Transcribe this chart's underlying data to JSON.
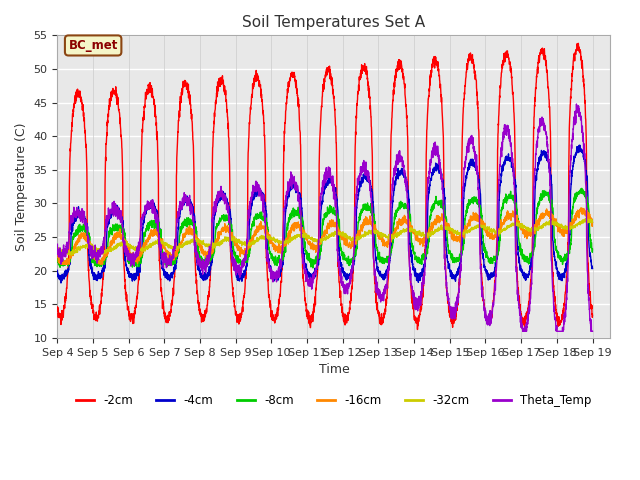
{
  "title": "Soil Temperatures Set A",
  "xlabel": "Time",
  "ylabel": "Soil Temperature (C)",
  "ylim": [
    10,
    55
  ],
  "background_color": "#ffffff",
  "plot_bg_color": "#e8e8e8",
  "annotation_text": "BC_met",
  "annotation_color": "#8B0000",
  "annotation_bg": "#f5f5c8",
  "series_colors": {
    "-2cm": "#ff0000",
    "-4cm": "#0000cc",
    "-8cm": "#00cc00",
    "-16cm": "#ff8800",
    "-32cm": "#cccc00",
    "Theta_Temp": "#9900cc"
  },
  "series_order": [
    "-2cm",
    "-4cm",
    "-8cm",
    "-16cm",
    "-32cm",
    "Theta_Temp"
  ],
  "legend_labels": [
    "-2cm",
    "-4cm",
    "-8cm",
    "-16cm",
    "-32cm",
    "Theta_Temp"
  ],
  "x_tick_labels": [
    "Sep 4",
    "Sep 5",
    "Sep 6",
    "Sep 7",
    "Sep 8",
    "Sep 9",
    "Sep 10",
    "Sep 11",
    "Sep 12",
    "Sep 13",
    "Sep 14",
    "Sep 15",
    "Sep 16",
    "Sep 17",
    "Sep 18",
    "Sep 19"
  ],
  "y_ticks": [
    10,
    15,
    20,
    25,
    30,
    35,
    40,
    45,
    50,
    55
  ],
  "grid_color": "#ffffff",
  "line_width": 1.0
}
